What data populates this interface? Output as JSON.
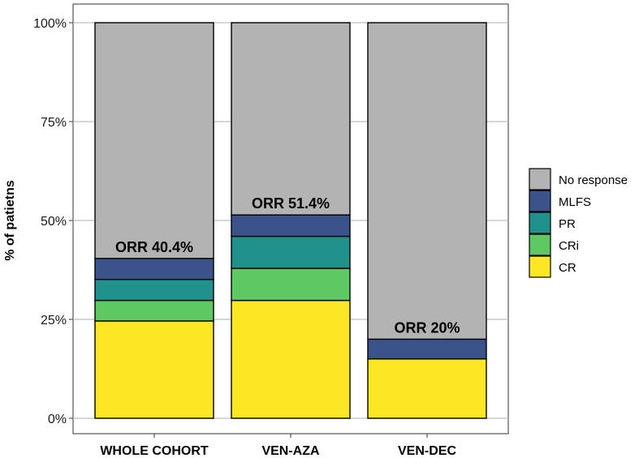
{
  "chart_data": {
    "type": "bar",
    "stacked": true,
    "title": "",
    "xlabel": "",
    "ylabel": "% of patietns",
    "ylim": [
      0,
      100
    ],
    "yticks": [
      0,
      25,
      50,
      75,
      100
    ],
    "ytick_labels": [
      "0%",
      "25%",
      "50%",
      "75%",
      "100%"
    ],
    "categories": [
      "WHOLE COHORT",
      "VEN-AZA",
      "VEN-DEC"
    ],
    "series": [
      {
        "name": "CR",
        "color": "#FDE725",
        "values": [
          24.6,
          29.8,
          15
        ]
      },
      {
        "name": "CRi",
        "color": "#5EC962",
        "values": [
          5.2,
          8.1,
          0
        ]
      },
      {
        "name": "PR",
        "color": "#21918C",
        "values": [
          5.3,
          8.1,
          0
        ]
      },
      {
        "name": "MLFS",
        "color": "#3B528B",
        "values": [
          5.3,
          5.4,
          5
        ]
      },
      {
        "name": "No response",
        "color": "#B3B3B3",
        "values": [
          59.6,
          48.6,
          80
        ]
      }
    ],
    "legend_order": [
      "No response",
      "MLFS",
      "PR",
      "CRi",
      "CR"
    ],
    "legend_position": "right",
    "annotations": [
      "ORR 40.4%",
      "ORR 51.4%",
      "ORR 20%"
    ],
    "grid": true
  }
}
